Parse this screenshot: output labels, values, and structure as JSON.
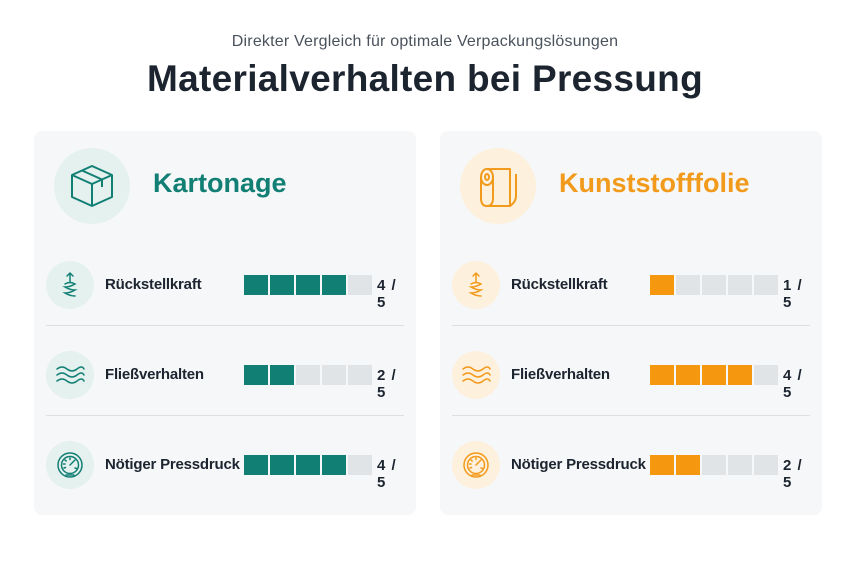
{
  "header": {
    "subtitle": "Direkter Vergleich für optimale Verpackungslösungen",
    "title": "Materialverhalten bei Pressung"
  },
  "max_score": 5,
  "cards": [
    {
      "title": "Kartonage",
      "icon": "box-icon",
      "accent": "#127f74",
      "rows": [
        {
          "label": "Rückstellkraft",
          "icon": "spring-icon",
          "value": 4,
          "score": "4 / 5"
        },
        {
          "label": "Fließverhalten",
          "icon": "waves-icon",
          "value": 2,
          "score": "2 / 5"
        },
        {
          "label": "Nötiger Pressdruck",
          "icon": "gauge-icon",
          "value": 4,
          "score": "4 / 5"
        }
      ]
    },
    {
      "title": "Kunststofffolie",
      "icon": "film-roll-icon",
      "accent": "#f5980f",
      "rows": [
        {
          "label": "Rückstellkraft",
          "icon": "spring-icon",
          "value": 1,
          "score": "1 / 5"
        },
        {
          "label": "Fließverhalten",
          "icon": "waves-icon",
          "value": 4,
          "score": "4 / 5"
        },
        {
          "label": "Nötiger Pressdruck",
          "icon": "gauge-icon",
          "value": 2,
          "score": "2 / 5"
        }
      ]
    }
  ]
}
